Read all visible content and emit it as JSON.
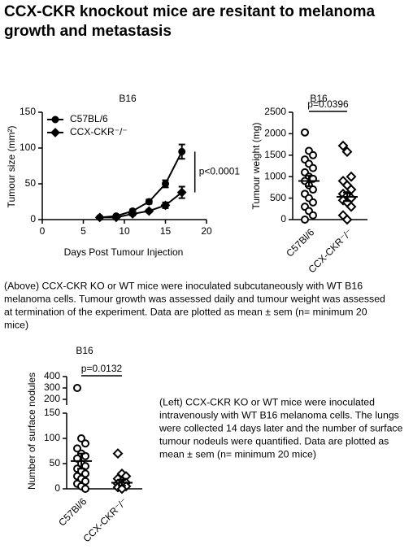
{
  "title_lines": [
    "CCX-CKR knockout mice are resitant to melanoma",
    "growth and metastasis"
  ],
  "caption_above": [
    "(Above) CCX-CKR KO or WT mice were inoculated subcutaneously with WT B16",
    "melanoma cells.  Tumour growth was assessed daily and tumour weight was assessed",
    "at termination of the experiment. Data are plotted as mean ± sem (n= minimum 20",
    "mice)"
  ],
  "caption_left": [
    "(Left) CCX-CKR KO or WT mice were inoculated",
    "intravenously with WT B16 melanoma cells.  The lungs",
    "were collected 14 days later and the number of surface",
    "tumour nodeuls were quantified. Data are plotted as",
    "mean ± sem (n= minimum 20 mice)"
  ],
  "chart_data": [
    {
      "type": "line",
      "title": "B16",
      "x_label": "Days Post Tumour Injection",
      "y_label": "Tumour size (mm²)",
      "x": [
        7,
        9,
        11,
        13,
        15,
        17
      ],
      "series": [
        {
          "name": "C57BL/6",
          "color": "#000000",
          "marker": "circle",
          "values": [
            3,
            5,
            12,
            25,
            50,
            95
          ],
          "errors": [
            1,
            1,
            2,
            3,
            5,
            10
          ]
        },
        {
          "name": "CCX-CKR⁻/⁻",
          "color": "#000000",
          "marker": "diamond",
          "values": [
            3,
            3,
            8,
            12,
            20,
            38
          ],
          "errors": [
            1,
            1,
            2,
            2,
            4,
            8
          ]
        }
      ],
      "annotation": "p<0.0001",
      "xlim": [
        0,
        20
      ],
      "xticks": [
        0,
        5,
        10,
        15,
        20
      ],
      "ylim": [
        0,
        150
      ],
      "yticks": [
        0,
        50,
        100,
        150
      ],
      "legend": "upper-left"
    },
    {
      "type": "dot",
      "title": "B16",
      "y_label": "Tumour weight (mg)",
      "annotation": "p=0.0396",
      "categories": [
        "C57Bl/6",
        "CCX-CKR⁻/⁻"
      ],
      "markers": [
        "circle",
        "diamond"
      ],
      "values": [
        [
          2030,
          1600,
          1500,
          1400,
          1300,
          1200,
          1100,
          1000,
          950,
          900,
          800,
          700,
          600,
          500,
          400,
          300,
          200,
          100,
          0
        ],
        [
          1720,
          1580,
          1000,
          900,
          800,
          700,
          600,
          550,
          500,
          450,
          400,
          300,
          100,
          0
        ]
      ],
      "means": [
        900,
        530
      ],
      "sems": [
        120,
        100
      ],
      "ylim": [
        0,
        2500
      ],
      "yticks": [
        0,
        500,
        1000,
        1500,
        2000,
        2500
      ]
    },
    {
      "type": "dot",
      "title": "B16",
      "y_label": "Number of surface nodules",
      "annotation": "p=0.0132",
      "categories": [
        "C57Bl/6",
        "CCX-CKR⁻/⁻"
      ],
      "markers": [
        "circle",
        "diamond"
      ],
      "values": [
        [
          300,
          100,
          90,
          80,
          70,
          65,
          60,
          50,
          45,
          40,
          35,
          30,
          25,
          20,
          15,
          10,
          5,
          0
        ],
        [
          70,
          30,
          25,
          20,
          15,
          12,
          10,
          8,
          5,
          3,
          0
        ]
      ],
      "means": [
        55,
        12
      ],
      "sems": [
        15,
        6
      ],
      "ylim": [
        0,
        150
      ],
      "yticks": [
        0,
        50,
        100,
        150
      ],
      "ylim_upper": [
        150,
        400
      ],
      "yticks_upper": [
        200,
        300,
        400
      ]
    }
  ]
}
